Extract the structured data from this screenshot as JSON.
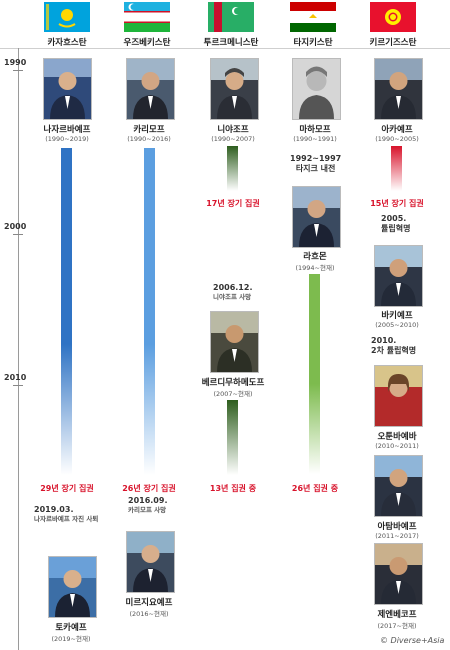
{
  "timeline": {
    "years": [
      "1990",
      "2000",
      "2010"
    ]
  },
  "countries": [
    {
      "name": "카자흐스탄",
      "flag_icon": "kazakhstan-flag-icon",
      "flag_color": "#00a3dd"
    },
    {
      "name": "우즈베키스탄",
      "flag_icon": "uzbekistan-flag-icon",
      "flag_color": "#1eb53a"
    },
    {
      "name": "투르크메니스탄",
      "flag_icon": "turkmenistan-flag-icon",
      "flag_color": "#28ae66"
    },
    {
      "name": "타지키스탄",
      "flag_icon": "tajikistan-flag-icon",
      "flag_color": "#cc0000"
    },
    {
      "name": "키르기즈스탄",
      "flag_icon": "kyrgyzstan-flag-icon",
      "flag_color": "#e8112d"
    }
  ],
  "leaders": {
    "nazarbayev": {
      "name": "나자르바예프",
      "years": "(1990~2019)"
    },
    "karimov": {
      "name": "카리모프",
      "years": "(1990~2016)"
    },
    "niyazov": {
      "name": "니야조프",
      "years": "(1990~2007)"
    },
    "makhamov": {
      "name": "마하모프",
      "years": "(1990~1991)"
    },
    "akayev": {
      "name": "아카예프",
      "years": "(1990~2005)"
    },
    "rahmon": {
      "name": "라흐몬",
      "years": "(1994~현재)"
    },
    "bakiyev": {
      "name": "바키예프",
      "years": "(2005~2010)"
    },
    "berdimuhamedov": {
      "name": "베르디무하메도프",
      "years": "(2007~현재)"
    },
    "otunbayeva": {
      "name": "오툰바예바",
      "years": "(2010~2011)"
    },
    "atambayev": {
      "name": "아탐바예프",
      "years": "(2011~2017)"
    },
    "tokayev": {
      "name": "토카예프",
      "years": "(2019~현재)"
    },
    "mirziyoyev": {
      "name": "미르지요예프",
      "years": "(2016~현재)"
    },
    "jeenbekov": {
      "name": "제엔베코프",
      "years": "(2017~현재)"
    }
  },
  "rule_labels": {
    "niyazov": "17년 장기 집권",
    "akayev": "15년 장기 집권",
    "nazarbayev": "29년 장기 집권",
    "karimov": "26년 장기 집권",
    "berdimuhamedov": "13년 집권 중",
    "rahmon": "26년 집권 중"
  },
  "events": {
    "tajik_civil_war": {
      "line1": "1992~1997",
      "line2": "타지크 내전"
    },
    "tulip_2005": {
      "line1": "2005.",
      "line2": "튤립혁명"
    },
    "niyazov_death": {
      "line1": "2006.12.",
      "sub": "니야조프 사망"
    },
    "tulip_2010": {
      "line1": "2010.",
      "line2": "2차 튤립혁명"
    },
    "nazarbayev_resign": {
      "line1": "2019.03.",
      "sub": "나자르바예프 자진 사퇴"
    },
    "karimov_death": {
      "line1": "2016.09.",
      "sub": "카리모프 사망"
    }
  },
  "colors": {
    "kazakh_bar": "#2f73c4",
    "uzbek_bar": "#5b9ee0",
    "turkmen_bar": "#2e5e1e",
    "tajik_bar": "#7dbb4e",
    "kyrgyz_bar": "#d8132b",
    "accent_red": "#d8132b"
  },
  "credit": "© Diverse+Asia"
}
